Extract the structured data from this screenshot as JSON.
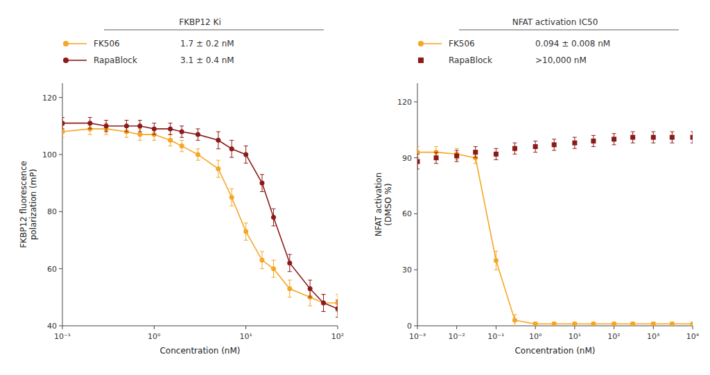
{
  "chart_data": [
    {
      "type": "scatter",
      "title": "FKBP12 Ki",
      "xlabel": "Concentration (nM)",
      "ylabel": "FKBP12 fluorescence\npolarization (mP)",
      "log": "x",
      "grid": false,
      "legend": "top",
      "xlim": [
        0.1,
        100
      ],
      "ylim": [
        40,
        125
      ],
      "xticks": [
        {
          "value": 0.1,
          "label": "10⁻¹"
        },
        {
          "value": 1,
          "label": "10⁰"
        },
        {
          "value": 10,
          "label": "10¹"
        },
        {
          "value": 100,
          "label": "10²"
        }
      ],
      "yticks": [
        40,
        60,
        80,
        100,
        120
      ],
      "x": [
        0.1,
        0.2,
        0.3,
        0.5,
        0.7,
        1.0,
        1.5,
        2.0,
        3.0,
        5.0,
        7.0,
        10.0,
        15.0,
        20.0,
        30.0,
        50.0,
        70.0,
        100.0
      ],
      "series": [
        {
          "name": "FK506",
          "color": "#F5A623",
          "marker": "circle",
          "line_style": "solid",
          "annotation": "1.7 ± 0.2 nM",
          "values": [
            108,
            109,
            109,
            108,
            107,
            107,
            105,
            103,
            100,
            95,
            85,
            73,
            63,
            60,
            53,
            50,
            48,
            48
          ],
          "errors": [
            2,
            2,
            2,
            2,
            2,
            2,
            2,
            2,
            2,
            3,
            3,
            3,
            3,
            3,
            3,
            3,
            3,
            3
          ]
        },
        {
          "name": "RapaBlock",
          "color": "#8B1A1A",
          "marker": "circle",
          "line_style": "solid",
          "annotation": "3.1 ± 0.4 nM",
          "values": [
            111,
            111,
            110,
            110,
            110,
            109,
            109,
            108,
            107,
            105,
            102,
            100,
            90,
            78,
            62,
            53,
            48,
            46
          ],
          "errors": [
            2,
            2,
            2,
            2,
            2,
            2,
            2,
            2,
            2,
            3,
            3,
            3,
            3,
            3,
            3,
            3,
            3,
            3
          ]
        }
      ]
    },
    {
      "type": "scatter",
      "title": "NFAT activation IC50",
      "xlabel": "Concentration (nM)",
      "ylabel": "NFAT activation\n(DMSO %)",
      "log": "x",
      "grid": false,
      "legend": "top",
      "xlim": [
        0.001,
        10000
      ],
      "ylim": [
        0,
        130
      ],
      "xticks": [
        {
          "value": 0.001,
          "label": "10⁻³"
        },
        {
          "value": 0.01,
          "label": "10⁻²"
        },
        {
          "value": 0.1,
          "label": "10⁻¹"
        },
        {
          "value": 1,
          "label": "10⁰"
        },
        {
          "value": 10,
          "label": "10¹"
        },
        {
          "value": 100,
          "label": "10²"
        },
        {
          "value": 1000,
          "label": "10³"
        },
        {
          "value": 10000,
          "label": "10⁴"
        }
      ],
      "yticks": [
        0,
        30,
        60,
        90,
        120
      ],
      "x": [
        0.001,
        0.003,
        0.01,
        0.03,
        0.1,
        0.3,
        1.0,
        3.0,
        10.0,
        30.0,
        100.0,
        300.0,
        1000.0,
        3000.0,
        10000.0
      ],
      "series": [
        {
          "name": "FK506",
          "color": "#F5A623",
          "marker": "circle",
          "line_style": "solid",
          "annotation": "0.094 ± 0.008 nM",
          "values": [
            93,
            93,
            92,
            90,
            35,
            3,
            1,
            1,
            1,
            1,
            1,
            1,
            1,
            1,
            1
          ],
          "errors": [
            3,
            3,
            3,
            3,
            5,
            3,
            1,
            1,
            1,
            1,
            1,
            1,
            1,
            1,
            1
          ]
        },
        {
          "name": "RapaBlock",
          "color": "#8B1A1A",
          "marker": "square",
          "line_style": "none",
          "annotation": ">10,000 nM",
          "values": [
            88,
            90,
            91,
            93,
            92,
            95,
            96,
            97,
            98,
            99,
            100,
            101,
            101,
            101,
            101
          ],
          "errors": [
            4,
            3,
            3,
            3,
            3,
            3,
            3,
            3,
            3,
            3,
            3,
            3,
            3,
            3,
            3
          ]
        }
      ]
    }
  ]
}
